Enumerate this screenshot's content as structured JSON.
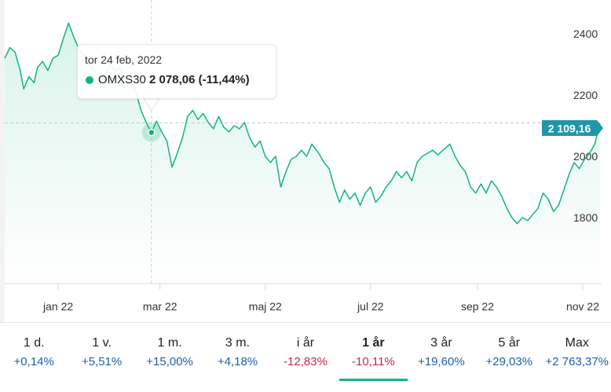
{
  "chart_data": {
    "type": "area",
    "series_name": "OMXS30",
    "y_ticks": [
      "2400",
      "2200",
      "2000",
      "1800"
    ],
    "x_ticks": [
      "jan 22",
      "mar 22",
      "maj 22",
      "jul 22",
      "sep 22",
      "nov 22"
    ],
    "ylim": [
      1700,
      2450
    ],
    "grid": "none",
    "last_value_label": "2 109,16",
    "reference_level": 2109.16,
    "points": [
      [
        "2021-12-01",
        2320
      ],
      [
        "2021-12-04",
        2355
      ],
      [
        "2021-12-07",
        2340
      ],
      [
        "2021-12-10",
        2280
      ],
      [
        "2021-12-12",
        2220
      ],
      [
        "2021-12-15",
        2260
      ],
      [
        "2021-12-18",
        2240
      ],
      [
        "2021-12-20",
        2290
      ],
      [
        "2021-12-23",
        2310
      ],
      [
        "2021-12-26",
        2280
      ],
      [
        "2021-12-29",
        2320
      ],
      [
        "2022-01-01",
        2330
      ],
      [
        "2022-01-04",
        2385
      ],
      [
        "2022-01-07",
        2435
      ],
      [
        "2022-01-10",
        2390
      ],
      [
        "2022-01-13",
        2350
      ],
      [
        "2022-01-16",
        2330
      ],
      [
        "2022-01-19",
        2300
      ],
      [
        "2022-01-22",
        2280
      ],
      [
        "2022-01-25",
        2240
      ],
      [
        "2022-01-28",
        2260
      ],
      [
        "2022-01-31",
        2300
      ],
      [
        "2022-02-03",
        2280
      ],
      [
        "2022-02-06",
        2290
      ],
      [
        "2022-02-09",
        2250
      ],
      [
        "2022-02-12",
        2240
      ],
      [
        "2022-02-15",
        2210
      ],
      [
        "2022-02-18",
        2150
      ],
      [
        "2022-02-21",
        2110
      ],
      [
        "2022-02-24",
        2078.06
      ],
      [
        "2022-02-27",
        2115
      ],
      [
        "2022-03-02",
        2080
      ],
      [
        "2022-03-05",
        2050
      ],
      [
        "2022-03-08",
        1965
      ],
      [
        "2022-03-11",
        2010
      ],
      [
        "2022-03-14",
        2060
      ],
      [
        "2022-03-17",
        2130
      ],
      [
        "2022-03-20",
        2150
      ],
      [
        "2022-03-23",
        2120
      ],
      [
        "2022-03-26",
        2140
      ],
      [
        "2022-03-29",
        2110
      ],
      [
        "2022-04-01",
        2090
      ],
      [
        "2022-04-04",
        2130
      ],
      [
        "2022-04-07",
        2095
      ],
      [
        "2022-04-10",
        2080
      ],
      [
        "2022-04-13",
        2100
      ],
      [
        "2022-04-16",
        2090
      ],
      [
        "2022-04-19",
        2110
      ],
      [
        "2022-04-22",
        2060
      ],
      [
        "2022-04-25",
        2030
      ],
      [
        "2022-04-28",
        2050
      ],
      [
        "2022-05-01",
        2000
      ],
      [
        "2022-05-04",
        1980
      ],
      [
        "2022-05-07",
        2000
      ],
      [
        "2022-05-10",
        1900
      ],
      [
        "2022-05-13",
        1950
      ],
      [
        "2022-05-16",
        1990
      ],
      [
        "2022-05-19",
        2000
      ],
      [
        "2022-05-22",
        2020
      ],
      [
        "2022-05-25",
        2000
      ],
      [
        "2022-05-28",
        2040
      ],
      [
        "2022-06-01",
        2010
      ],
      [
        "2022-06-04",
        1980
      ],
      [
        "2022-06-07",
        1960
      ],
      [
        "2022-06-10",
        1900
      ],
      [
        "2022-06-13",
        1850
      ],
      [
        "2022-06-16",
        1890
      ],
      [
        "2022-06-19",
        1860
      ],
      [
        "2022-06-22",
        1880
      ],
      [
        "2022-06-25",
        1840
      ],
      [
        "2022-06-28",
        1880
      ],
      [
        "2022-07-01",
        1900
      ],
      [
        "2022-07-04",
        1850
      ],
      [
        "2022-07-07",
        1870
      ],
      [
        "2022-07-10",
        1900
      ],
      [
        "2022-07-13",
        1920
      ],
      [
        "2022-07-16",
        1950
      ],
      [
        "2022-07-19",
        1930
      ],
      [
        "2022-07-22",
        1950
      ],
      [
        "2022-07-25",
        1920
      ],
      [
        "2022-07-28",
        1980
      ],
      [
        "2022-07-31",
        2000
      ],
      [
        "2022-08-03",
        2010
      ],
      [
        "2022-08-06",
        2020
      ],
      [
        "2022-08-09",
        2005
      ],
      [
        "2022-08-12",
        2020
      ],
      [
        "2022-08-16",
        2040
      ],
      [
        "2022-08-19",
        2000
      ],
      [
        "2022-08-22",
        1970
      ],
      [
        "2022-08-25",
        1950
      ],
      [
        "2022-08-28",
        1900
      ],
      [
        "2022-08-31",
        1880
      ],
      [
        "2022-09-03",
        1910
      ],
      [
        "2022-09-06",
        1880
      ],
      [
        "2022-09-09",
        1920
      ],
      [
        "2022-09-12",
        1900
      ],
      [
        "2022-09-15",
        1870
      ],
      [
        "2022-09-18",
        1830
      ],
      [
        "2022-09-21",
        1800
      ],
      [
        "2022-09-24",
        1780
      ],
      [
        "2022-09-27",
        1800
      ],
      [
        "2022-09-30",
        1790
      ],
      [
        "2022-10-03",
        1810
      ],
      [
        "2022-10-06",
        1830
      ],
      [
        "2022-10-09",
        1880
      ],
      [
        "2022-10-12",
        1860
      ],
      [
        "2022-10-15",
        1820
      ],
      [
        "2022-10-18",
        1840
      ],
      [
        "2022-10-21",
        1890
      ],
      [
        "2022-10-24",
        1940
      ],
      [
        "2022-10-27",
        1980
      ],
      [
        "2022-10-30",
        1960
      ],
      [
        "2022-11-02",
        1990
      ],
      [
        "2022-11-05",
        2010
      ],
      [
        "2022-11-08",
        2040
      ],
      [
        "2022-11-11",
        2109.16
      ]
    ]
  },
  "tooltip": {
    "date": "tor 24 feb, 2022",
    "name": "OMXS30",
    "value": "2 078,06 (-11,44%)",
    "point": [
      "2022-02-24",
      2078.06
    ]
  },
  "colors": {
    "line": "#13b57a",
    "value_badge": "#2196a8",
    "positive": "#1f5fa8",
    "negative": "#c0284a"
  },
  "periods": [
    {
      "label": "1 d.",
      "change": "+0,14%",
      "direction": "pos",
      "active": false
    },
    {
      "label": "1 v.",
      "change": "+5,51%",
      "direction": "pos",
      "active": false
    },
    {
      "label": "1 m.",
      "change": "+15,00%",
      "direction": "pos",
      "active": false
    },
    {
      "label": "3 m.",
      "change": "+4,18%",
      "direction": "pos",
      "active": false
    },
    {
      "label": "i år",
      "change": "-12,83%",
      "direction": "neg",
      "active": false
    },
    {
      "label": "1 år",
      "change": "-10,11%",
      "direction": "neg",
      "active": true
    },
    {
      "label": "3 år",
      "change": "+19,60%",
      "direction": "pos",
      "active": false
    },
    {
      "label": "5 år",
      "change": "+29,03%",
      "direction": "pos",
      "active": false
    },
    {
      "label": "Max",
      "change": "+2 763,37%",
      "direction": "pos",
      "active": false
    }
  ]
}
